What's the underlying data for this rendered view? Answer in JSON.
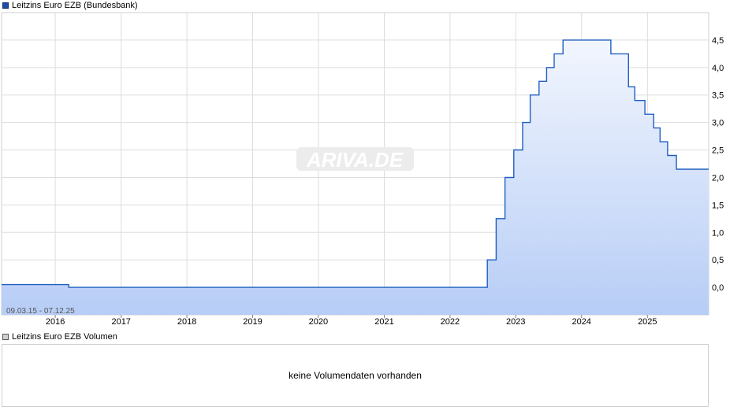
{
  "legend": {
    "main_label": "Leitzins Euro EZB (Bundesbank)",
    "volume_label": "Leitzins Euro EZB Volumen"
  },
  "date_range": "09.03.15 - 07.12.25",
  "watermark": "ARIVA.DE",
  "volume_message": "keine Volumendaten vorhanden",
  "colors": {
    "line": "#1f5fbf",
    "fill_top": "#f2f6fe",
    "fill_bottom": "#b7cdf6",
    "grid": "#dddddd"
  },
  "chart_data": {
    "type": "area",
    "x_ticks": [
      "2016",
      "2017",
      "2018",
      "2019",
      "2020",
      "2021",
      "2022",
      "2023",
      "2024",
      "2025"
    ],
    "y_ticks": [
      "0,0",
      "0,5",
      "1,0",
      "1,5",
      "2,0",
      "2,5",
      "3,0",
      "3,5",
      "4,0",
      "4,5"
    ],
    "xlim": [
      "2015-03-09",
      "2025-12-07"
    ],
    "ylim": [
      -0.5,
      5.0
    ],
    "grid": true,
    "series": [
      {
        "step": true,
        "points": [
          [
            "2015-03-09",
            0.05
          ],
          [
            "2016-03-16",
            0.0
          ],
          [
            "2022-07-27",
            0.5
          ],
          [
            "2022-09-14",
            1.25
          ],
          [
            "2022-11-02",
            2.0
          ],
          [
            "2022-12-21",
            2.5
          ],
          [
            "2023-02-08",
            3.0
          ],
          [
            "2023-03-22",
            3.5
          ],
          [
            "2023-05-10",
            3.75
          ],
          [
            "2023-06-21",
            4.0
          ],
          [
            "2023-08-02",
            4.25
          ],
          [
            "2023-09-20",
            4.5
          ],
          [
            "2024-06-12",
            4.25
          ],
          [
            "2024-09-18",
            3.65
          ],
          [
            "2024-10-23",
            3.4
          ],
          [
            "2024-12-18",
            3.15
          ],
          [
            "2025-02-05",
            2.9
          ],
          [
            "2025-03-12",
            2.65
          ],
          [
            "2025-04-23",
            2.4
          ],
          [
            "2025-06-11",
            2.15
          ],
          [
            "2025-12-07",
            2.15
          ]
        ]
      }
    ]
  }
}
